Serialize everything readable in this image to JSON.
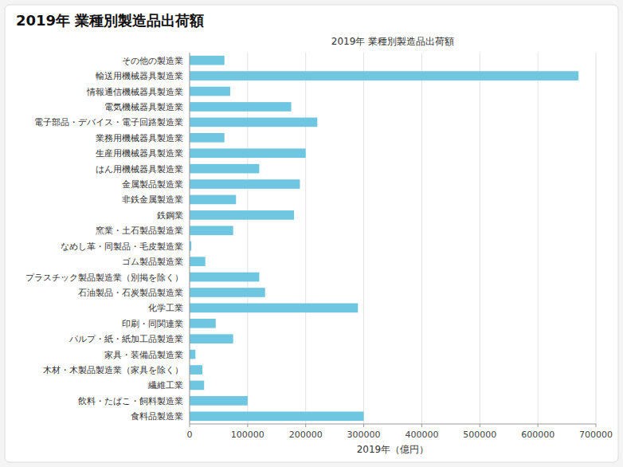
{
  "chart_data": {
    "type": "bar",
    "orientation": "horizontal",
    "title": "2019年 業種別製造品出荷額",
    "subtitle": "2019年 業種別製造品出荷額",
    "xlabel": "2019年（億円）",
    "categories": [
      "その他の製造業",
      "輸送用機械器具製造業",
      "情報通信機械器具製造業",
      "電気機械器具製造業",
      "電子部品・デバイス・電子回路製造業",
      "業務用機械器具製造業",
      "生産用機械器具製造業",
      "はん用機械器具製造業",
      "金属製品製造業",
      "非鉄金属製造業",
      "鉄鋼業",
      "窯業・土石製品製造業",
      "なめし革・同製品・毛皮製造業",
      "ゴム製品製造業",
      "プラスチック製品製造業（別掲を除く）",
      "石油製品・石炭製品製造業",
      "化学工業",
      "印刷・同関連業",
      "パルプ・紙・紙加工品製造業",
      "家具・装備品製造業",
      "木材・木製品製造業（家具を除く）",
      "繊維工業",
      "飲料・たばこ・飼料製造業",
      "食料品製造業"
    ],
    "values": [
      60000,
      670000,
      70000,
      175000,
      220000,
      60000,
      200000,
      120000,
      190000,
      80000,
      180000,
      75000,
      3000,
      27000,
      120000,
      130000,
      290000,
      45000,
      75000,
      10000,
      22000,
      25000,
      100000,
      300000
    ],
    "color": "#6ec6e0",
    "xlim": [
      0,
      700000
    ],
    "xticks": [
      0,
      100000,
      200000,
      300000,
      400000,
      500000,
      600000,
      700000
    ],
    "grid": true
  }
}
